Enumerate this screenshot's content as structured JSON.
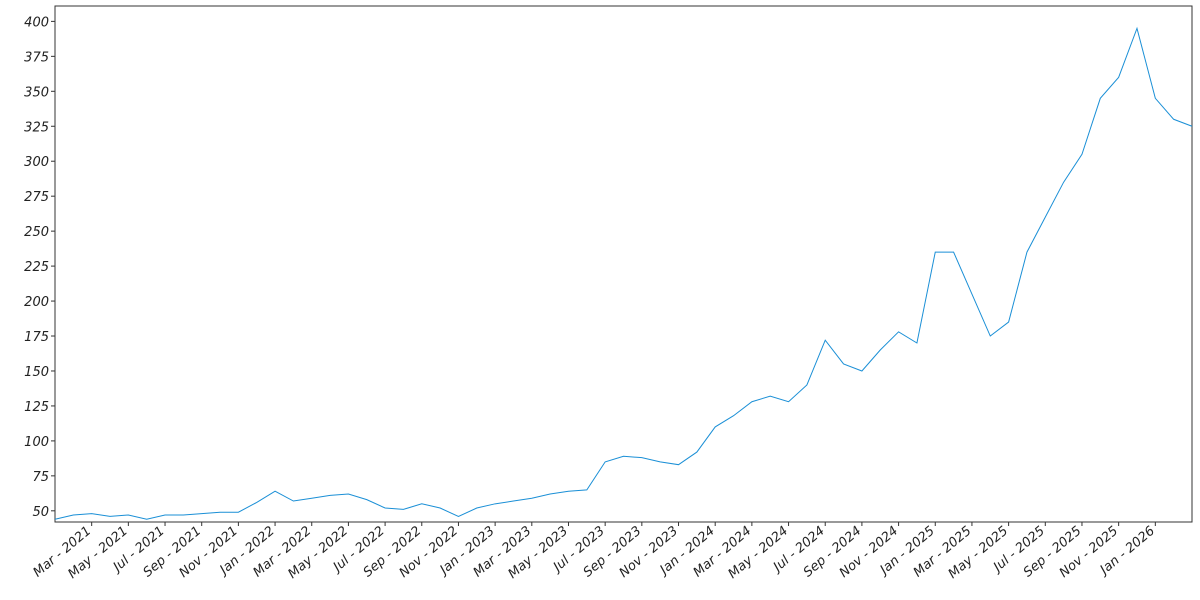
{
  "chart_data": {
    "type": "line",
    "x": [
      "2021-01",
      "2021-02",
      "2021-03",
      "2021-04",
      "2021-05",
      "2021-06",
      "2021-07",
      "2021-08",
      "2021-09",
      "2021-10",
      "2021-11",
      "2021-12",
      "2022-01",
      "2022-02",
      "2022-03",
      "2022-04",
      "2022-05",
      "2022-06",
      "2022-07",
      "2022-08",
      "2022-09",
      "2022-10",
      "2022-11",
      "2022-12",
      "2023-01",
      "2023-02",
      "2023-03",
      "2023-04",
      "2023-05",
      "2023-06",
      "2023-07",
      "2023-08",
      "2023-09",
      "2023-10",
      "2023-11",
      "2023-12",
      "2024-01",
      "2024-02",
      "2024-03",
      "2024-04",
      "2024-05",
      "2024-06",
      "2024-07",
      "2024-08",
      "2024-09",
      "2024-10",
      "2024-11",
      "2024-12",
      "2025-01",
      "2025-02",
      "2025-03",
      "2025-04",
      "2025-05",
      "2025-06",
      "2025-07",
      "2025-08",
      "2025-09",
      "2025-10",
      "2025-11",
      "2025-12",
      "2026-01",
      "2026-02",
      "2026-03"
    ],
    "series": [
      {
        "color": "#1a8fd6",
        "values": [
          44,
          47,
          48,
          46,
          47,
          44,
          47,
          47,
          48,
          49,
          49,
          56,
          64,
          57,
          59,
          61,
          62,
          58,
          52,
          51,
          55,
          52,
          46,
          52,
          55,
          57,
          59,
          62,
          64,
          65,
          85,
          89,
          88,
          85,
          83,
          92,
          110,
          118,
          128,
          132,
          128,
          140,
          172,
          155,
          150,
          165,
          178,
          170,
          235,
          235,
          205,
          175,
          185,
          235,
          260,
          285,
          305,
          345,
          360,
          395,
          345,
          330,
          325
        ]
      }
    ],
    "xlim": [
      "2021-01",
      "2026-03"
    ],
    "xticks": [
      {
        "value": "2021-03",
        "label": "Mar - 2021"
      },
      {
        "value": "2021-05",
        "label": "May - 2021"
      },
      {
        "value": "2021-07",
        "label": "Jul - 2021"
      },
      {
        "value": "2021-09",
        "label": "Sep - 2021"
      },
      {
        "value": "2021-11",
        "label": "Nov - 2021"
      },
      {
        "value": "2022-01",
        "label": "Jan - 2022"
      },
      {
        "value": "2022-03",
        "label": "Mar - 2022"
      },
      {
        "value": "2022-05",
        "label": "May - 2022"
      },
      {
        "value": "2022-07",
        "label": "Jul - 2022"
      },
      {
        "value": "2022-09",
        "label": "Sep - 2022"
      },
      {
        "value": "2022-11",
        "label": "Nov - 2022"
      },
      {
        "value": "2023-01",
        "label": "Jan - 2023"
      },
      {
        "value": "2023-03",
        "label": "Mar - 2023"
      },
      {
        "value": "2023-05",
        "label": "May - 2023"
      },
      {
        "value": "2023-07",
        "label": "Jul - 2023"
      },
      {
        "value": "2023-09",
        "label": "Sep - 2023"
      },
      {
        "value": "2023-11",
        "label": "Nov - 2023"
      },
      {
        "value": "2024-01",
        "label": "Jan - 2024"
      },
      {
        "value": "2024-03",
        "label": "Mar - 2024"
      },
      {
        "value": "2024-05",
        "label": "May - 2024"
      },
      {
        "value": "2024-07",
        "label": "Jul - 2024"
      },
      {
        "value": "2024-09",
        "label": "Sep - 2024"
      },
      {
        "value": "2024-11",
        "label": "Nov - 2024"
      },
      {
        "value": "2025-01",
        "label": "Jan - 2025"
      },
      {
        "value": "2025-03",
        "label": "Mar - 2025"
      },
      {
        "value": "2025-05",
        "label": "May - 2025"
      },
      {
        "value": "2025-07",
        "label": "Jul - 2025"
      },
      {
        "value": "2025-09",
        "label": "Sep - 2025"
      },
      {
        "value": "2025-11",
        "label": "Nov - 2025"
      },
      {
        "value": "2026-01",
        "label": "Jan - 2026"
      }
    ],
    "ylim": [
      42,
      411
    ],
    "yticks": [
      50,
      75,
      100,
      125,
      150,
      175,
      200,
      225,
      250,
      275,
      300,
      325,
      350,
      375,
      400
    ],
    "grid": false
  }
}
